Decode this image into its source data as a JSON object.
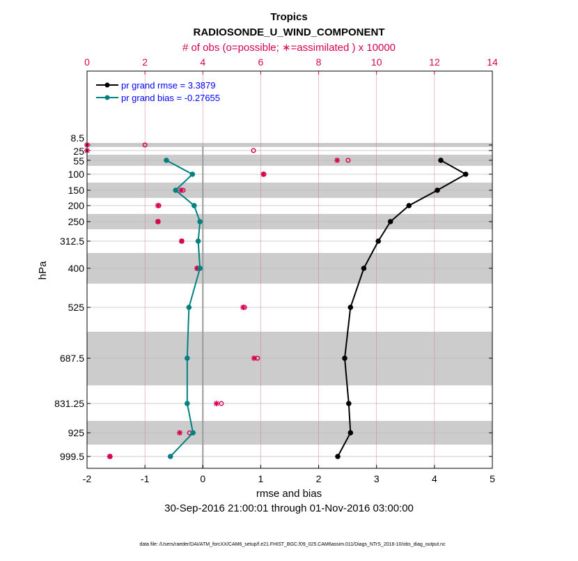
{
  "chart_data": {
    "type": "line",
    "title": "Tropics",
    "subtitle": "RADIOSONDE_U_WIND_COMPONENT",
    "top_axis_label": "# of obs (o=possible; ∗=assimilated ) x 10000",
    "xlabel": "rmse and bias",
    "ylabel": "hPa",
    "date_range": "30-Sep-2016 21:00:01 through 01-Nov-2016 03:00:00",
    "footer": "data file: /Users/raeder/DAI/ATM_forcXX/CAM6_setup/f.e21.FHIST_BGC.f09_025.CAM6assim.011/Diags_NTrS_2016-10/obs_diag_output.nc",
    "xlim": [
      -2,
      5
    ],
    "x_ticks": [
      "-2",
      "-1",
      "0",
      "1",
      "2",
      "3",
      "4",
      "5"
    ],
    "top_xlim": [
      0,
      14
    ],
    "top_ticks": [
      "0",
      "2",
      "4",
      "6",
      "8",
      "10",
      "12",
      "14"
    ],
    "levels": [
      "8.5",
      "25",
      "55",
      "100",
      "150",
      "200",
      "250",
      "312.5",
      "400",
      "525",
      "687.5",
      "831.25",
      "925",
      "999.5"
    ],
    "series": [
      {
        "name": "pr grand rmse = 3.3879",
        "color": "#000000",
        "values": [
          null,
          null,
          4.11,
          4.54,
          4.05,
          3.56,
          3.24,
          3.03,
          2.78,
          2.55,
          2.45,
          2.52,
          2.55,
          2.33
        ]
      },
      {
        "name": "pr grand bias = -0.27655",
        "color": "#008080",
        "values": [
          null,
          null,
          -0.63,
          -0.18,
          -0.47,
          -0.15,
          -0.05,
          -0.08,
          -0.05,
          -0.24,
          -0.27,
          -0.27,
          -0.17,
          -0.56
        ]
      }
    ],
    "obs_possible": [
      2.0,
      5.75,
      9.02,
      6.11,
      3.32,
      2.48,
      2.45,
      3.27,
      3.82,
      5.44,
      5.89,
      4.64,
      3.54,
      0.79
    ],
    "obs_assimilated": [
      0.0,
      0.0,
      8.64,
      6.09,
      3.25,
      2.45,
      2.45,
      3.27,
      3.8,
      5.39,
      5.77,
      4.47,
      3.2,
      0.79
    ],
    "obs_color": "#d6004f",
    "grid": true,
    "legend": "top-left"
  }
}
